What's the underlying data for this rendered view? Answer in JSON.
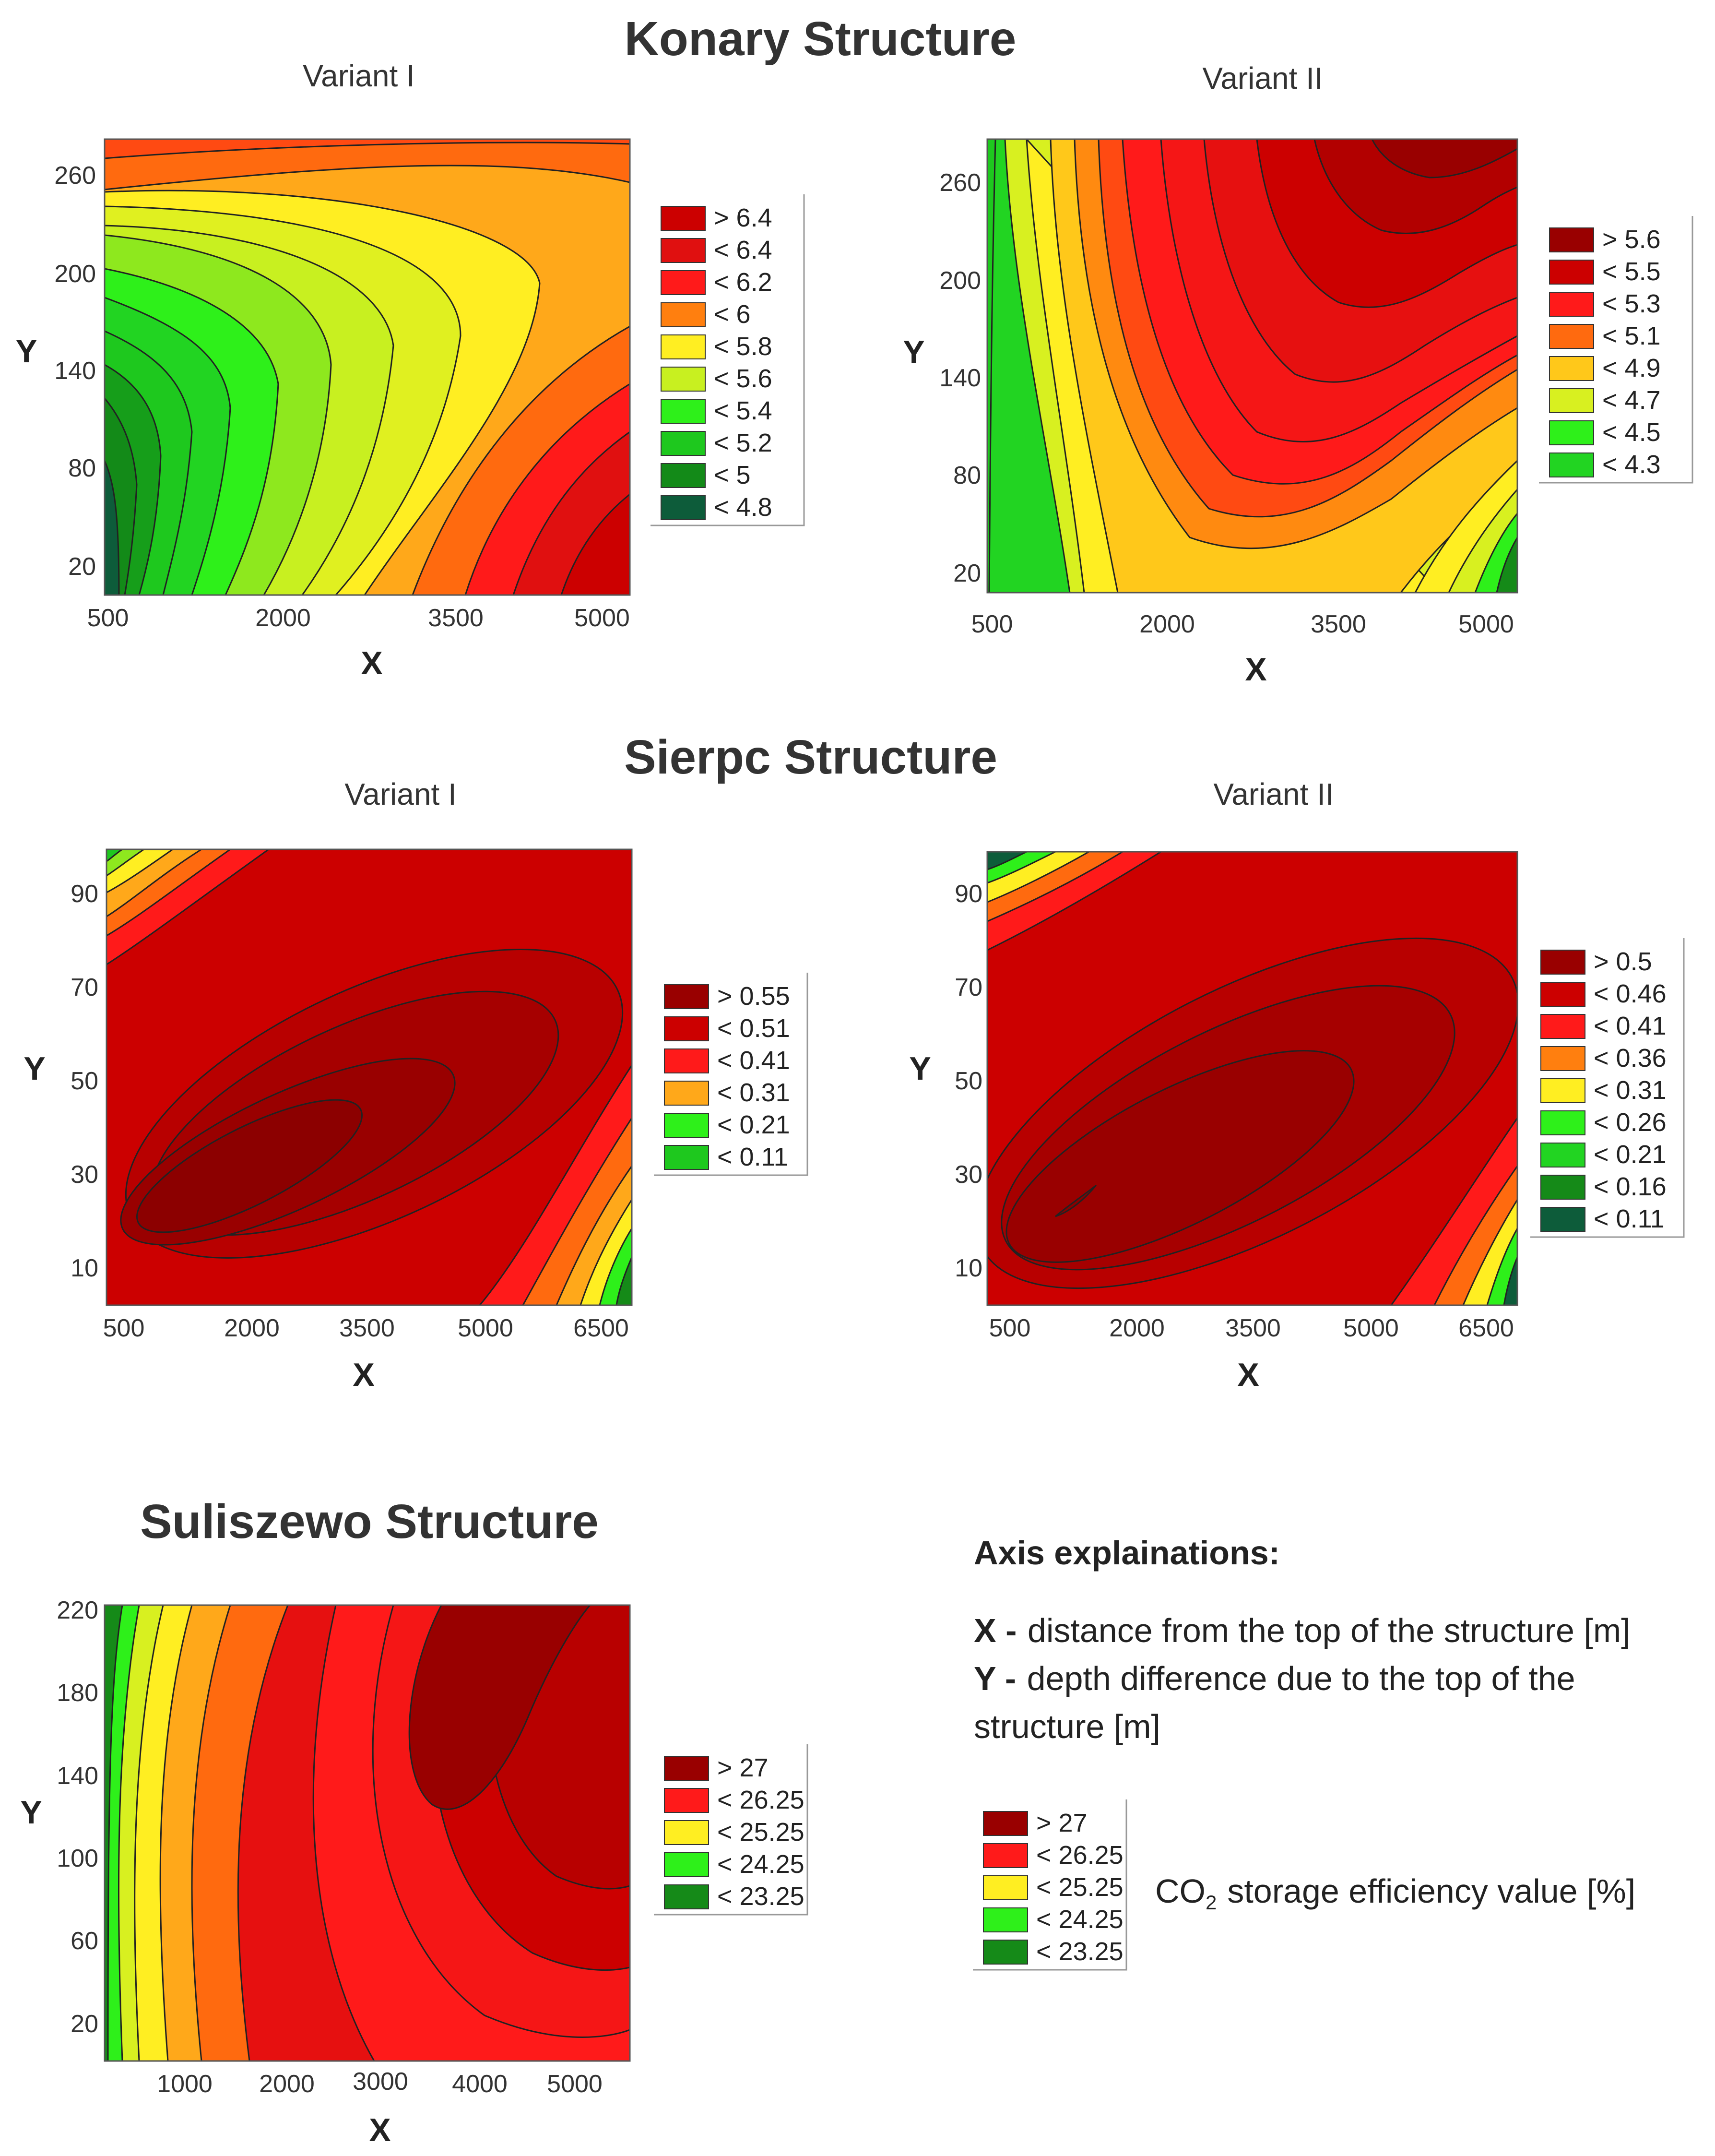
{
  "chart_data": [
    {
      "type": "heatmap",
      "structure": "Konary Structure",
      "title": "Variant I",
      "xlabel": "X",
      "ylabel": "Y",
      "xlim": [
        500,
        5000
      ],
      "ylim": [
        0,
        280
      ],
      "x_ticks": [
        500,
        2000,
        3500,
        5000
      ],
      "y_ticks": [
        20,
        80,
        140,
        200,
        260
      ],
      "legend": [
        {
          "label": "> 6.4",
          "color": "#cc0000"
        },
        {
          "label": "< 6.4",
          "color": "#e01010"
        },
        {
          "label": "< 6.2",
          "color": "#ff1a1a"
        },
        {
          "label": "< 6",
          "color": "#ff7f0f"
        },
        {
          "label": "< 5.8",
          "color": "#ffee22"
        },
        {
          "label": "< 5.6",
          "color": "#c8f020"
        },
        {
          "label": "< 5.4",
          "color": "#2ef01a"
        },
        {
          "label": "< 5.2",
          "color": "#1ec81e"
        },
        {
          "label": "< 5",
          "color": "#138a18"
        },
        {
          "label": "< 4.8",
          "color": "#0d5c3a"
        }
      ]
    },
    {
      "type": "heatmap",
      "structure": "Konary Structure",
      "title": "Variant II",
      "xlabel": "X",
      "ylabel": "Y",
      "xlim": [
        500,
        5000
      ],
      "ylim": [
        0,
        280
      ],
      "x_ticks": [
        500,
        2000,
        3500,
        5000
      ],
      "y_ticks": [
        20,
        80,
        140,
        200,
        260
      ],
      "legend": [
        {
          "label": "> 5.6",
          "color": "#990000"
        },
        {
          "label": "< 5.5",
          "color": "#cc0000"
        },
        {
          "label": "< 5.3",
          "color": "#ff1a1a"
        },
        {
          "label": "< 5.1",
          "color": "#ff6a0f"
        },
        {
          "label": "< 4.9",
          "color": "#ffc81a"
        },
        {
          "label": "< 4.7",
          "color": "#d8f020"
        },
        {
          "label": "< 4.5",
          "color": "#2ef01a"
        },
        {
          "label": "< 4.3",
          "color": "#22d422"
        }
      ]
    },
    {
      "type": "heatmap",
      "structure": "Sierpc Structure",
      "title": "Variant I",
      "xlabel": "X",
      "ylabel": "Y",
      "xlim": [
        500,
        7000
      ],
      "ylim": [
        0,
        100
      ],
      "x_ticks": [
        500,
        2000,
        3500,
        5000,
        6500
      ],
      "y_ticks": [
        10,
        30,
        50,
        70,
        90
      ],
      "legend": [
        {
          "label": "> 0.55",
          "color": "#990000"
        },
        {
          "label": "< 0.51",
          "color": "#cc0000"
        },
        {
          "label": "< 0.41",
          "color": "#ff1a1a"
        },
        {
          "label": "< 0.31",
          "color": "#ffa81a"
        },
        {
          "label": "< 0.21",
          "color": "#2ef01a"
        },
        {
          "label": "< 0.11",
          "color": "#1ec81e"
        }
      ]
    },
    {
      "type": "heatmap",
      "structure": "Sierpc Structure",
      "title": "Variant II",
      "xlabel": "X",
      "ylabel": "Y",
      "xlim": [
        500,
        7000
      ],
      "ylim": [
        0,
        100
      ],
      "x_ticks": [
        500,
        2000,
        3500,
        5000,
        6500
      ],
      "y_ticks": [
        10,
        30,
        50,
        70,
        90
      ],
      "legend": [
        {
          "label": "> 0.5",
          "color": "#990000"
        },
        {
          "label": "< 0.46",
          "color": "#cc0000"
        },
        {
          "label": "< 0.41",
          "color": "#ff1a1a"
        },
        {
          "label": "< 0.36",
          "color": "#ff7f0f"
        },
        {
          "label": "< 0.31",
          "color": "#ffee22"
        },
        {
          "label": "< 0.26",
          "color": "#2ef01a"
        },
        {
          "label": "< 0.21",
          "color": "#22d422"
        },
        {
          "label": "< 0.16",
          "color": "#158a18"
        },
        {
          "label": "< 0.11",
          "color": "#0d5c3a"
        }
      ]
    },
    {
      "type": "heatmap",
      "structure": "Suliszewo Structure",
      "title": "",
      "xlabel": "X",
      "ylabel": "Y",
      "xlim": [
        0,
        5600
      ],
      "ylim": [
        0,
        220
      ],
      "x_ticks": [
        1000,
        2000,
        3000,
        4000,
        5000
      ],
      "y_ticks": [
        20,
        60,
        100,
        140,
        180,
        220
      ],
      "legend": [
        {
          "label": "> 27",
          "color": "#990000"
        },
        {
          "label": "< 26.25",
          "color": "#ff1a1a"
        },
        {
          "label": "< 25.25",
          "color": "#ffee22"
        },
        {
          "label": "< 24.25",
          "color": "#2ef01a"
        },
        {
          "label": "< 23.25",
          "color": "#158a18"
        }
      ]
    }
  ],
  "headings": {
    "konary": "Konary Structure",
    "sierpc": "Sierpc Structure",
    "suliszewo": "Suliszewo Structure"
  },
  "explanation": {
    "title": "Axis explainations:",
    "x_key": "X -",
    "x_text": "distance from the top of the structure [m]",
    "y_key": "Y -",
    "y_text_1": "depth difference due to the top of the",
    "y_text_2": "structure [m]",
    "co2_prefix": "CO",
    "co2_sub": "2",
    "co2_suffix": "storage efficiency value [%]",
    "legend": [
      {
        "label": "> 27",
        "color": "#990000"
      },
      {
        "label": "< 26.25",
        "color": "#ff1a1a"
      },
      {
        "label": "< 25.25",
        "color": "#ffee22"
      },
      {
        "label": "< 24.25",
        "color": "#2ef01a"
      },
      {
        "label": "< 23.25",
        "color": "#158a18"
      }
    ]
  }
}
